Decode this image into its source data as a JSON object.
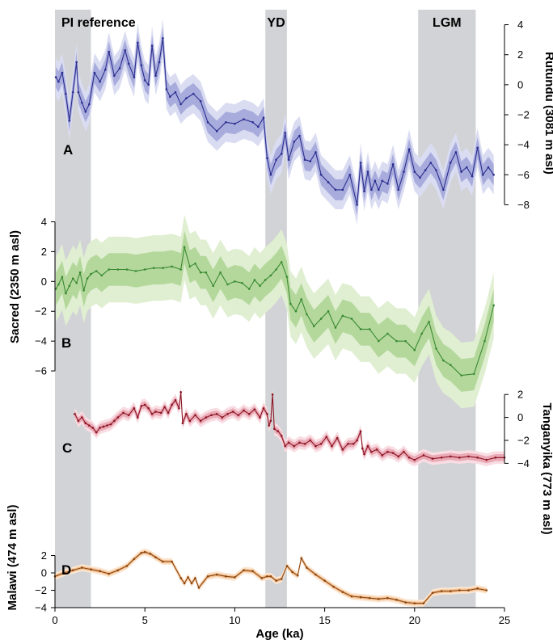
{
  "chart_data": {
    "type": "line",
    "xlabel": "Age (ka)",
    "xlim": [
      0,
      25
    ],
    "x_ticks": [
      0,
      5,
      10,
      15,
      20,
      25
    ],
    "bands": [
      {
        "label": "PI reference",
        "x0": 0,
        "x1": 2
      },
      {
        "label": "YD",
        "x0": 11.7,
        "x1": 12.9
      },
      {
        "label": "LGM",
        "x0": 20.2,
        "x1": 23.4
      }
    ],
    "colors": {
      "A": "#2b2d8f",
      "A_band_inner": "#a8acdc",
      "A_band_outer": "#dadcf2",
      "B": "#3a8a32",
      "B_band_inner": "#b4d89c",
      "B_band_outer": "#e0efd2",
      "C": "#8c1422",
      "C_band_inner": "#eaaab6",
      "C_band_outer": "#f8dde3",
      "D": "#8a4510",
      "D_band_inner": "#f4c294",
      "D_band_outer": "#fbe6d1",
      "shading": "#d2d3d6"
    },
    "panels": [
      {
        "label": "A",
        "ylabel": "Rutundu (3081 m asl)",
        "axis_side": "right",
        "ylim": [
          -9,
          5
        ],
        "y_ticks": [
          4,
          2,
          0,
          -2,
          -4,
          -6,
          -8
        ],
        "x": [
          0.05,
          0.2,
          0.4,
          0.6,
          0.8,
          1.0,
          1.2,
          1.3,
          1.5,
          1.7,
          1.9,
          2.2,
          2.5,
          2.8,
          3.0,
          3.3,
          3.6,
          3.9,
          4.1,
          4.4,
          4.6,
          4.8,
          5.0,
          5.2,
          5.4,
          5.6,
          5.8,
          6.0,
          6.2,
          6.4,
          6.7,
          7.0,
          7.3,
          7.7,
          8.1,
          8.5,
          9.0,
          9.5,
          10.0,
          10.5,
          11.0,
          11.3,
          11.6,
          11.8,
          12.0,
          12.3,
          12.6,
          12.8,
          13.0,
          13.3,
          13.6,
          13.9,
          14.2,
          14.5,
          14.8,
          15.2,
          15.6,
          16.0,
          16.4,
          16.8,
          17.0,
          17.2,
          17.4,
          17.6,
          17.8,
          18.0,
          18.2,
          18.5,
          18.8,
          19.1,
          19.4,
          19.7,
          20.0,
          20.3,
          20.6,
          20.9,
          21.2,
          21.6,
          22.0,
          22.3,
          22.6,
          22.9,
          23.2,
          23.5,
          23.8,
          24.1,
          24.4
        ],
        "values": [
          0.5,
          0.2,
          0.8,
          -0.6,
          -2.4,
          -0.5,
          1.5,
          -0.5,
          -1.2,
          -1.8,
          -1.3,
          0.8,
          0.2,
          1.0,
          2.2,
          0.6,
          1.1,
          2.3,
          1.4,
          0.5,
          2.8,
          1.3,
          0.3,
          0.0,
          2.6,
          0.6,
          1.5,
          3.1,
          -0.3,
          -0.8,
          -0.5,
          -1.3,
          -0.9,
          -0.6,
          -1.1,
          -2.5,
          -3.1,
          -2.5,
          -2.6,
          -2.3,
          -2.5,
          -2.8,
          -2.2,
          -4.9,
          -6.0,
          -5.0,
          -4.6,
          -3.2,
          -5.0,
          -3.8,
          -3.4,
          -5.0,
          -5.1,
          -4.5,
          -6.0,
          -6.5,
          -7.0,
          -7.0,
          -6.0,
          -8.0,
          -5.2,
          -7.1,
          -5.8,
          -7.0,
          -6.4,
          -7.0,
          -6.4,
          -6.6,
          -5.3,
          -7.0,
          -5.8,
          -4.3,
          -5.8,
          -6.2,
          -5.7,
          -5.2,
          -5.7,
          -7.0,
          -5.2,
          -4.5,
          -5.8,
          -5.5,
          -6.1,
          -4.2,
          -6.0,
          -5.5,
          -6.0
        ],
        "unc_inner": 0.7,
        "unc_outer": 1.3
      },
      {
        "label": "B",
        "ylabel": "Sacred (2350 m asl)",
        "axis_side": "left",
        "ylim": [
          -8,
          5
        ],
        "y_ticks": [
          4,
          2,
          0,
          -2,
          -4,
          -6
        ],
        "x": [
          0.05,
          0.2,
          0.4,
          0.6,
          0.8,
          1.0,
          1.2,
          1.4,
          1.6,
          1.8,
          2.0,
          2.3,
          2.6,
          3.0,
          3.5,
          4.0,
          4.5,
          5.0,
          5.5,
          6.0,
          6.5,
          7.0,
          7.2,
          7.5,
          7.8,
          8.1,
          8.4,
          8.8,
          9.2,
          9.6,
          10.0,
          10.4,
          10.8,
          11.1,
          11.4,
          11.7,
          12.0,
          12.3,
          12.6,
          12.9,
          13.1,
          13.4,
          13.7,
          14.0,
          14.4,
          14.8,
          15.2,
          15.6,
          16.0,
          16.5,
          17.0,
          17.5,
          18.0,
          18.5,
          19.0,
          19.5,
          20.0,
          20.4,
          20.8,
          21.2,
          21.6,
          22.0,
          22.6,
          23.3,
          23.9,
          24.4
        ],
        "values": [
          -0.5,
          -0.2,
          0.3,
          -0.8,
          -0.3,
          0.2,
          -0.1,
          0.6,
          -0.6,
          0.2,
          0.5,
          0.7,
          0.4,
          0.8,
          0.8,
          0.8,
          0.7,
          0.8,
          0.9,
          0.9,
          1.0,
          0.8,
          2.3,
          1.0,
          1.2,
          0.6,
          0.6,
          -0.3,
          0.6,
          -0.2,
          0.0,
          -0.1,
          -0.5,
          0.1,
          -0.3,
          0.1,
          0.4,
          0.8,
          1.3,
          0.3,
          -1.5,
          -2.0,
          -1.2,
          -2.2,
          -3.0,
          -2.5,
          -2.0,
          -3.1,
          -2.3,
          -2.5,
          -3.2,
          -3.2,
          -4.0,
          -3.5,
          -4.0,
          -4.0,
          -4.6,
          -3.5,
          -2.7,
          -4.5,
          -5.3,
          -5.6,
          -6.3,
          -6.2,
          -4.0,
          -1.6
        ],
        "unc_inner": 1.1,
        "unc_outer": 2.2
      },
      {
        "label": "C",
        "ylabel": "Tanganyika (773 m asl)",
        "axis_side": "right",
        "ylim": [
          -7,
          3
        ],
        "y_ticks": [
          2,
          0,
          -2,
          -4
        ],
        "x": [
          1.1,
          1.3,
          1.5,
          1.7,
          1.9,
          2.1,
          2.3,
          2.5,
          2.7,
          2.9,
          3.1,
          3.3,
          3.5,
          3.8,
          4.1,
          4.4,
          4.6,
          4.8,
          5.0,
          5.2,
          5.4,
          5.6,
          5.9,
          6.1,
          6.3,
          6.5,
          6.7,
          6.9,
          7.0,
          7.1,
          7.3,
          7.5,
          7.8,
          8.1,
          8.4,
          8.7,
          9.0,
          9.3,
          9.6,
          9.9,
          10.2,
          10.5,
          10.8,
          11.1,
          11.4,
          11.6,
          11.8,
          11.9,
          12.0,
          12.1,
          12.2,
          12.4,
          12.6,
          12.8,
          13.0,
          13.3,
          13.6,
          13.9,
          14.2,
          14.5,
          14.8,
          15.1,
          15.4,
          15.7,
          16.0,
          16.3,
          16.6,
          16.8,
          17.0,
          17.1,
          17.2,
          17.4,
          17.6,
          17.9,
          18.2,
          18.5,
          18.8,
          19.1,
          19.4,
          19.7,
          20.0,
          20.5,
          21.0,
          21.5,
          22.0,
          22.5,
          23.0,
          23.5,
          24.0,
          24.5,
          25.0
        ],
        "values": [
          0.3,
          -0.3,
          0.0,
          -0.5,
          -0.7,
          -0.9,
          -1.3,
          -0.9,
          -0.8,
          -0.7,
          -0.6,
          -0.3,
          0.0,
          0.4,
          0.2,
          0.8,
          0.0,
          1.0,
          1.1,
          0.8,
          0.3,
          0.5,
          0.4,
          0.9,
          0.4,
          1.1,
          1.5,
          0.8,
          2.2,
          -0.5,
          0.3,
          -0.3,
          0.2,
          -0.3,
          0.0,
          0.2,
          0.3,
          0.0,
          0.3,
          0.5,
          0.2,
          0.6,
          0.3,
          0.7,
          0.0,
          0.8,
          0.3,
          -0.7,
          -0.3,
          2.0,
          -1.0,
          -1.2,
          -1.6,
          -2.5,
          -2.2,
          -2.5,
          -2.2,
          -2.3,
          -2.0,
          -2.5,
          -2.3,
          -1.7,
          -2.5,
          -1.8,
          -2.8,
          -2.3,
          -2.3,
          -2.0,
          -1.2,
          -2.7,
          -3.2,
          -2.5,
          -3.0,
          -2.8,
          -3.3,
          -3.0,
          -3.1,
          -3.4,
          -3.0,
          -3.5,
          -3.7,
          -3.3,
          -3.6,
          -3.5,
          -3.4,
          -3.5,
          -3.4,
          -3.5,
          -3.7,
          -3.5,
          -3.5
        ],
        "unc_inner": 0.3,
        "unc_outer": 0.55
      },
      {
        "label": "D",
        "ylabel": "Malawi (474 m asl)",
        "axis_side": "left",
        "ylim": [
          -4,
          4
        ],
        "y_ticks": [
          2,
          0,
          -2,
          -4
        ],
        "x": [
          0.0,
          0.5,
          1.0,
          1.5,
          2.0,
          2.5,
          3.0,
          3.5,
          4.0,
          4.4,
          4.8,
          5.0,
          5.3,
          5.6,
          6.0,
          6.5,
          7.0,
          7.2,
          7.4,
          7.6,
          7.8,
          8.0,
          8.5,
          9.0,
          9.5,
          10.0,
          10.5,
          11.0,
          11.5,
          11.8,
          12.0,
          12.3,
          12.6,
          12.9,
          13.2,
          13.5,
          13.7,
          14.0,
          14.5,
          15.0,
          15.5,
          16.0,
          16.5,
          17.0,
          17.5,
          18.0,
          18.5,
          19.0,
          19.5,
          20.0,
          20.5,
          21.0,
          21.5,
          22.0,
          22.5,
          23.0,
          23.5,
          24.0
        ],
        "values": [
          -0.4,
          0.0,
          0.3,
          0.6,
          0.4,
          0.2,
          -0.1,
          0.3,
          0.8,
          1.6,
          2.3,
          2.4,
          2.2,
          1.8,
          1.3,
          1.3,
          -0.6,
          -1.2,
          -0.5,
          -1.2,
          -0.6,
          -1.7,
          -0.4,
          -0.2,
          -0.4,
          -0.5,
          0.3,
          0.2,
          -0.6,
          -0.4,
          -0.4,
          -0.9,
          -0.7,
          0.8,
          0.1,
          -0.3,
          1.7,
          0.6,
          -0.2,
          -0.9,
          -1.6,
          -2.2,
          -2.7,
          -2.8,
          -2.9,
          -3.0,
          -2.9,
          -3.1,
          -3.4,
          -3.5,
          -3.5,
          -2.3,
          -2.1,
          -2.1,
          -2.0,
          -2.0,
          -1.8,
          -2.0
        ],
        "unc_inner": 0.2,
        "unc_outer": 0.4
      }
    ]
  }
}
